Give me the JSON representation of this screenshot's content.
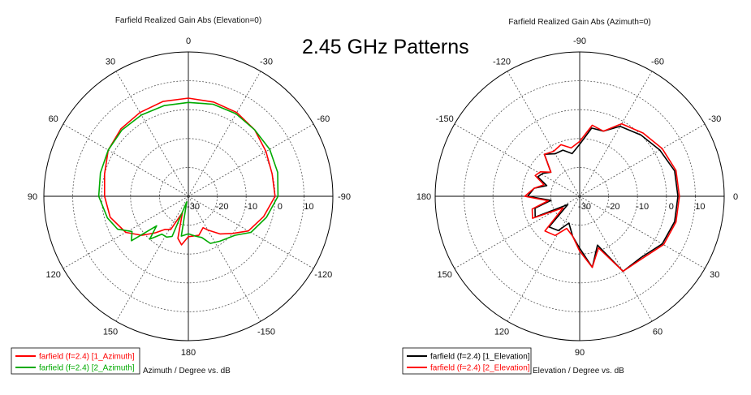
{
  "figure": {
    "title": "2.45 GHz Patterns"
  },
  "chart_data": [
    {
      "type": "polar",
      "title": "Farfield Realized Gain Abs (Elevation=0)",
      "axis_caption": "Azimuth / Degree vs. dB",
      "rlim": [
        -30,
        20
      ],
      "ring_labels": [
        "-30",
        "-20",
        "-10",
        "0",
        "10"
      ],
      "angle_labels": [
        "0",
        "30",
        "60",
        "90",
        "120",
        "150",
        "180",
        "-150",
        "-120",
        "-90",
        "-60",
        "-30"
      ],
      "angle_label_values": [
        0,
        30,
        60,
        90,
        120,
        150,
        180,
        -150,
        -120,
        -90,
        -60,
        -30
      ],
      "top_angle": 0,
      "angle_direction": "counterclockwise",
      "grid": true,
      "legend": "bottom-left",
      "series": [
        {
          "name": "farfield (f=2.4) [1_Azimuth]",
          "color": "#ff0000",
          "points": [
            [
              -180,
              -16
            ],
            [
              -165,
              -16
            ],
            [
              -155,
              -18
            ],
            [
              -150,
              -16.5
            ],
            [
              -140,
              -13
            ],
            [
              -130,
              -10
            ],
            [
              -120,
              -6
            ],
            [
              -105,
              -3
            ],
            [
              -90,
              0
            ],
            [
              -75,
              0
            ],
            [
              -60,
              1
            ],
            [
              -45,
              2.5
            ],
            [
              -30,
              3.5
            ],
            [
              -15,
              3.8
            ],
            [
              0,
              4
            ],
            [
              15,
              4
            ],
            [
              30,
              3.5
            ],
            [
              45,
              3
            ],
            [
              60,
              2
            ],
            [
              75,
              0
            ],
            [
              90,
              -1
            ],
            [
              105,
              -2
            ],
            [
              120,
              -5
            ],
            [
              130,
              -9
            ],
            [
              138,
              -13
            ],
            [
              145,
              -16
            ],
            [
              152,
              -17
            ],
            [
              160,
              -24
            ],
            [
              166,
              -15
            ],
            [
              172,
              -13
            ],
            [
              180,
              -16
            ]
          ]
        },
        {
          "name": "farfield (f=2.4) [2_Azimuth]",
          "color": "#00aa00",
          "points": [
            [
              -180,
              -17
            ],
            [
              -170,
              -16
            ],
            [
              -162,
              -15
            ],
            [
              -155,
              -12
            ],
            [
              -145,
              -11
            ],
            [
              -130,
              -9
            ],
            [
              -120,
              -5
            ],
            [
              -105,
              -2
            ],
            [
              -90,
              1
            ],
            [
              -75,
              2
            ],
            [
              -60,
              2.5
            ],
            [
              -45,
              2.5
            ],
            [
              -30,
              3
            ],
            [
              -15,
              3
            ],
            [
              0,
              2.5
            ],
            [
              15,
              2.5
            ],
            [
              30,
              2.5
            ],
            [
              45,
              2.5
            ],
            [
              60,
              2
            ],
            [
              75,
              1.5
            ],
            [
              90,
              1
            ],
            [
              105,
              -1
            ],
            [
              115,
              -3
            ],
            [
              122,
              -7
            ],
            [
              128,
              -5
            ],
            [
              133,
              -15
            ],
            [
              138,
              -10
            ],
            [
              145,
              -14
            ],
            [
              152,
              -14
            ],
            [
              158,
              -15
            ],
            [
              164,
              -28
            ],
            [
              170,
              -16
            ],
            [
              180,
              -17
            ]
          ]
        }
      ]
    },
    {
      "type": "polar",
      "title": "Farfield Realized Gain Abs (Azimuth=0)",
      "axis_caption": "Elevation / Degree vs. dB",
      "rlim": [
        -30,
        20
      ],
      "ring_labels": [
        "-30",
        "-20",
        "-10",
        "0",
        "10"
      ],
      "angle_labels": [
        "-90",
        "-120",
        "-150",
        "180",
        "150",
        "120",
        "90",
        "60",
        "30",
        "0",
        "-30",
        "-60"
      ],
      "angle_label_values": [
        -90,
        -120,
        -150,
        180,
        150,
        120,
        90,
        60,
        30,
        0,
        -30,
        -60
      ],
      "top_angle": -90,
      "angle_direction": "clockwise",
      "grid": true,
      "legend": "bottom-left",
      "series": [
        {
          "name": "farfield (f=2.4) [1_Elevation]",
          "color": "#000000",
          "points": [
            [
              -180,
              -12
            ],
            [
              -170,
              -14
            ],
            [
              -162,
              -18
            ],
            [
              -155,
              -14
            ],
            [
              -148,
              -15
            ],
            [
              -140,
              -17
            ],
            [
              -130,
              -11
            ],
            [
              -120,
              -13
            ],
            [
              -110,
              -13
            ],
            [
              -100,
              -15
            ],
            [
              -90,
              -12
            ],
            [
              -80,
              -6
            ],
            [
              -70,
              -6
            ],
            [
              -60,
              -2
            ],
            [
              -45,
              0
            ],
            [
              -30,
              2
            ],
            [
              -15,
              4
            ],
            [
              0,
              4
            ],
            [
              15,
              4
            ],
            [
              30,
              3
            ],
            [
              45,
              0
            ],
            [
              60,
              0
            ],
            [
              70,
              -12
            ],
            [
              80,
              -5
            ],
            [
              90,
              -12
            ],
            [
              100,
              -16
            ],
            [
              112,
              -20
            ],
            [
              122,
              -16
            ],
            [
              135,
              -15
            ],
            [
              145,
              -25
            ],
            [
              155,
              -13
            ],
            [
              165,
              -14
            ],
            [
              172,
              -20
            ],
            [
              180,
              -12
            ]
          ]
        },
        {
          "name": "farfield (f=2.4) [2_Elevation]",
          "color": "#ff0000",
          "points": [
            [
              -180,
              -11
            ],
            [
              -170,
              -14
            ],
            [
              -162,
              -17
            ],
            [
              -155,
              -13
            ],
            [
              -148,
              -14
            ],
            [
              -140,
              -17
            ],
            [
              -130,
              -11
            ],
            [
              -120,
              -12
            ],
            [
              -110,
              -11
            ],
            [
              -100,
              -13
            ],
            [
              -90,
              -11
            ],
            [
              -80,
              -5
            ],
            [
              -70,
              -6
            ],
            [
              -60,
              -1
            ],
            [
              -45,
              1
            ],
            [
              -30,
              3
            ],
            [
              -15,
              4.5
            ],
            [
              0,
              4.5
            ],
            [
              15,
              4.5
            ],
            [
              30,
              3.5
            ],
            [
              45,
              0.5
            ],
            [
              60,
              0
            ],
            [
              70,
              -11
            ],
            [
              80,
              -5
            ],
            [
              90,
              -11
            ],
            [
              100,
              -16
            ],
            [
              112,
              -18
            ],
            [
              122,
              -14
            ],
            [
              135,
              -13
            ],
            [
              145,
              -23
            ],
            [
              155,
              -12
            ],
            [
              165,
              -13
            ],
            [
              172,
              -19
            ],
            [
              180,
              -11
            ]
          ]
        }
      ]
    }
  ]
}
